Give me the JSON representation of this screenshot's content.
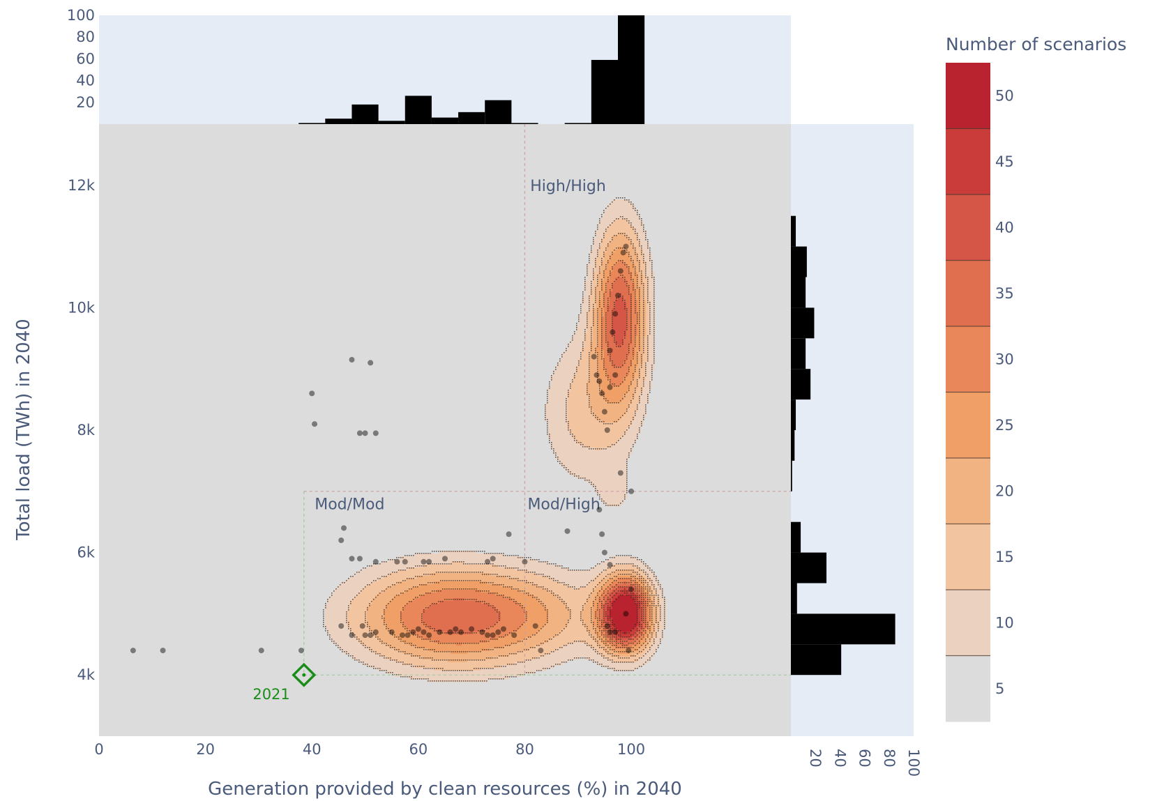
{
  "chart_data": {
    "type": "contour",
    "x_axis": {
      "label": "Generation provided by clean resources (%) in 2040",
      "range": [
        0,
        130
      ],
      "ticks": [
        0,
        20,
        40,
        60,
        80,
        100
      ],
      "tick_labels": [
        "0",
        "20",
        "40",
        "60",
        "80",
        "100"
      ]
    },
    "y_axis": {
      "label": "Total load (TWh) in 2040",
      "range": [
        3000,
        13000
      ],
      "ticks": [
        4000,
        6000,
        8000,
        10000,
        12000
      ],
      "tick_labels": [
        "4k",
        "6k",
        "8k",
        "10k",
        "12k"
      ]
    },
    "colorbar": {
      "title": "Number of scenarios",
      "range": [
        2.5,
        52.5
      ],
      "ticks": [
        5,
        10,
        15,
        20,
        25,
        30,
        35,
        40,
        45,
        50
      ],
      "tick_labels": [
        "5",
        "10",
        "15",
        "20",
        "25",
        "30",
        "35",
        "40",
        "45",
        "50"
      ],
      "bands": [
        {
          "from": 2.5,
          "to": 7.5,
          "color": "#dcdcdc"
        },
        {
          "from": 7.5,
          "to": 12.5,
          "color": "#ebd1c0"
        },
        {
          "from": 12.5,
          "to": 17.5,
          "color": "#f3c4a0"
        },
        {
          "from": 17.5,
          "to": 22.5,
          "color": "#f2b383"
        },
        {
          "from": 22.5,
          "to": 27.5,
          "color": "#f0a066"
        },
        {
          "from": 27.5,
          "to": 32.5,
          "color": "#e9875a"
        },
        {
          "from": 32.5,
          "to": 37.5,
          "color": "#df6f4f"
        },
        {
          "from": 37.5,
          "to": 42.5,
          "color": "#d55646"
        },
        {
          "from": 42.5,
          "to": 47.5,
          "color": "#c93c3a"
        },
        {
          "from": 47.5,
          "to": 52.5,
          "color": "#b8232f"
        }
      ]
    },
    "kde_peaks": [
      {
        "x": 67,
        "y": 4950,
        "sx": 14,
        "sy": 600,
        "amp": 36
      },
      {
        "x": 99,
        "y": 5000,
        "sx": 3.6,
        "sy": 450,
        "amp": 56
      },
      {
        "x": 98,
        "y": 9900,
        "sx": 3.6,
        "sy": 1050,
        "amp": 38
      },
      {
        "x": 91,
        "y": 8300,
        "sx": 6.2,
        "sy": 950,
        "amp": 14
      },
      {
        "x": 86,
        "y": 5000,
        "sx": 8,
        "sy": 500,
        "amp": 6
      },
      {
        "x": 50,
        "y": 6900,
        "sx": 1.3,
        "sy": 500,
        "amp": 5
      },
      {
        "x": 97,
        "y": 7000,
        "sx": 2.2,
        "sy": 280,
        "amp": 7
      }
    ],
    "scatter_points": [
      [
        6.4,
        4400
      ],
      [
        12,
        4400
      ],
      [
        30.5,
        4400
      ],
      [
        38,
        4400
      ],
      [
        47.5,
        9150
      ],
      [
        51,
        9100
      ],
      [
        40,
        8600
      ],
      [
        40.5,
        8100
      ],
      [
        49,
        7950
      ],
      [
        50,
        7950
      ],
      [
        52,
        7950
      ],
      [
        46,
        6400
      ],
      [
        45.5,
        6200
      ],
      [
        47.5,
        5900
      ],
      [
        49,
        5900
      ],
      [
        52,
        5850
      ],
      [
        56,
        5850
      ],
      [
        57.5,
        5850
      ],
      [
        61,
        5850
      ],
      [
        62,
        5850
      ],
      [
        65,
        5900
      ],
      [
        73,
        5850
      ],
      [
        74,
        5900
      ],
      [
        77,
        6300
      ],
      [
        45.5,
        4800
      ],
      [
        47.5,
        4650
      ],
      [
        49.5,
        4800
      ],
      [
        50,
        4650
      ],
      [
        51,
        4650
      ],
      [
        52,
        4700
      ],
      [
        55,
        4700
      ],
      [
        57,
        4650
      ],
      [
        58,
        4650
      ],
      [
        59,
        4700
      ],
      [
        60,
        4750
      ],
      [
        61,
        4700
      ],
      [
        62,
        4650
      ],
      [
        64,
        4700
      ],
      [
        66,
        4700
      ],
      [
        67,
        4750
      ],
      [
        68,
        4700
      ],
      [
        70,
        4750
      ],
      [
        72,
        4700
      ],
      [
        73,
        4650
      ],
      [
        74,
        4650
      ],
      [
        75,
        4700
      ],
      [
        76,
        4750
      ],
      [
        78,
        4650
      ],
      [
        80,
        5850
      ],
      [
        82,
        4800
      ],
      [
        83,
        4400
      ],
      [
        88,
        6350
      ],
      [
        94,
        6700
      ],
      [
        94.5,
        6300
      ],
      [
        95,
        6000
      ],
      [
        96,
        5800
      ],
      [
        95.5,
        4800
      ],
      [
        96,
        4700
      ],
      [
        97,
        4700
      ],
      [
        99,
        5000
      ],
      [
        99.5,
        4400
      ],
      [
        100,
        5400
      ],
      [
        100,
        7000
      ],
      [
        98,
        7300
      ],
      [
        93,
        9200
      ],
      [
        93.5,
        8900
      ],
      [
        94,
        8800
      ],
      [
        94.5,
        8600
      ],
      [
        95,
        8300
      ],
      [
        95.5,
        8000
      ],
      [
        96,
        9300
      ],
      [
        96.5,
        9600
      ],
      [
        97,
        9900
      ],
      [
        97.5,
        10200
      ],
      [
        98,
        10600
      ],
      [
        98.5,
        10900
      ],
      [
        99,
        11000
      ],
      [
        97,
        8900
      ],
      [
        96,
        8700
      ]
    ],
    "highlight_point": {
      "x": 38.5,
      "y": 4000,
      "label": "2021"
    },
    "quadrant_lines": {
      "vertical": 80,
      "horizontal": 7000
    },
    "quadrant_labels": [
      {
        "text": "High/High",
        "x": 80.5,
        "y": 12000
      },
      {
        "text": "Mod/Mod",
        "x": 40,
        "y": 6800
      },
      {
        "text": "Mod/High",
        "x": 80,
        "y": 6800
      }
    ],
    "x_histogram": {
      "ticks": [
        20,
        40,
        60,
        80,
        100
      ],
      "tick_labels": [
        "20",
        "40",
        "60",
        "80",
        "100"
      ],
      "range": [
        0,
        100
      ],
      "bars": [
        {
          "x0": 37.5,
          "x1": 42.5,
          "count": 1
        },
        {
          "x0": 42.5,
          "x1": 47.5,
          "count": 5
        },
        {
          "x0": 47.5,
          "x1": 52.5,
          "count": 18
        },
        {
          "x0": 52.5,
          "x1": 57.5,
          "count": 3
        },
        {
          "x0": 57.5,
          "x1": 62.5,
          "count": 26
        },
        {
          "x0": 62.5,
          "x1": 67.5,
          "count": 6
        },
        {
          "x0": 67.5,
          "x1": 72.5,
          "count": 11
        },
        {
          "x0": 72.5,
          "x1": 77.5,
          "count": 22
        },
        {
          "x0": 77.5,
          "x1": 82.5,
          "count": 1
        },
        {
          "x0": 87.5,
          "x1": 92.5,
          "count": 1
        },
        {
          "x0": 92.5,
          "x1": 97.5,
          "count": 59
        },
        {
          "x0": 97.5,
          "x1": 102.5,
          "count": 100
        }
      ]
    },
    "y_histogram": {
      "ticks": [
        20,
        40,
        60,
        80,
        100
      ],
      "tick_labels": [
        "20",
        "40",
        "60",
        "80",
        "100"
      ],
      "range": [
        0,
        100
      ],
      "bars": [
        {
          "y0": 4000,
          "y1": 4500,
          "count": 41
        },
        {
          "y0": 4500,
          "y1": 5000,
          "count": 85
        },
        {
          "y0": 5000,
          "y1": 5500,
          "count": 5
        },
        {
          "y0": 5500,
          "y1": 6000,
          "count": 29
        },
        {
          "y0": 6000,
          "y1": 6500,
          "count": 8
        },
        {
          "y0": 7000,
          "y1": 7500,
          "count": 1
        },
        {
          "y0": 7500,
          "y1": 8000,
          "count": 3
        },
        {
          "y0": 8000,
          "y1": 8500,
          "count": 4
        },
        {
          "y0": 8500,
          "y1": 9000,
          "count": 16
        },
        {
          "y0": 9000,
          "y1": 9500,
          "count": 12
        },
        {
          "y0": 9500,
          "y1": 10000,
          "count": 19
        },
        {
          "y0": 10000,
          "y1": 10500,
          "count": 12
        },
        {
          "y0": 10500,
          "y1": 11000,
          "count": 13
        },
        {
          "y0": 11000,
          "y1": 11500,
          "count": 4
        }
      ]
    }
  }
}
